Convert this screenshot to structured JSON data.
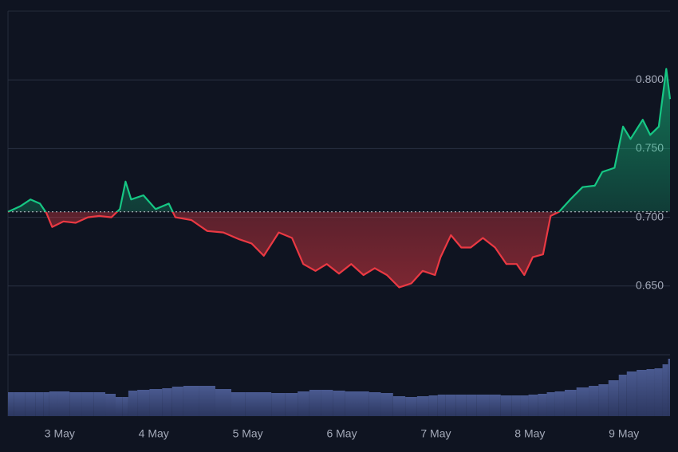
{
  "chart_data": {
    "type": "baseline",
    "x": [
      2.45,
      2.58,
      2.69,
      2.79,
      2.86,
      2.92,
      3.04,
      3.17,
      3.3,
      3.42,
      3.55,
      3.64,
      3.7,
      3.76,
      3.89,
      4.02,
      4.16,
      4.23,
      4.4,
      4.57,
      4.74,
      4.91,
      5.04,
      5.17,
      5.33,
      5.47,
      5.59,
      5.72,
      5.84,
      5.97,
      6.1,
      6.23,
      6.35,
      6.48,
      6.61,
      6.74,
      6.86,
      6.99,
      7.05,
      7.16,
      7.27,
      7.37,
      7.5,
      7.63,
      7.75,
      7.86,
      7.94,
      8.03,
      8.14,
      8.22,
      8.31,
      8.43,
      8.56,
      8.69,
      8.77,
      8.9,
      8.99,
      9.07,
      9.2,
      9.28,
      9.37,
      9.45,
      9.49
    ],
    "values": [
      0.704,
      0.708,
      0.713,
      0.71,
      0.703,
      0.693,
      0.697,
      0.696,
      0.7,
      0.701,
      0.7,
      0.706,
      0.726,
      0.713,
      0.716,
      0.706,
      0.71,
      0.7,
      0.698,
      0.69,
      0.689,
      0.684,
      0.681,
      0.672,
      0.689,
      0.685,
      0.666,
      0.661,
      0.666,
      0.659,
      0.666,
      0.658,
      0.663,
      0.658,
      0.649,
      0.652,
      0.661,
      0.658,
      0.671,
      0.687,
      0.678,
      0.678,
      0.685,
      0.678,
      0.666,
      0.666,
      0.658,
      0.671,
      0.673,
      0.701,
      0.704,
      0.713,
      0.722,
      0.723,
      0.733,
      0.736,
      0.766,
      0.757,
      0.771,
      0.76,
      0.766,
      0.808,
      0.786
    ],
    "volume": [
      30,
      30,
      30,
      30,
      30,
      31,
      31,
      30,
      30,
      30,
      28,
      24,
      24,
      32,
      33,
      34,
      35,
      37,
      38,
      38,
      34,
      30,
      30,
      30,
      29,
      29,
      31,
      33,
      33,
      32,
      31,
      31,
      30,
      29,
      25,
      24,
      25,
      26,
      27,
      27,
      27,
      27,
      27,
      27,
      26,
      26,
      26,
      27,
      28,
      30,
      31,
      33,
      36,
      38,
      40,
      45,
      52,
      56,
      58,
      59,
      60,
      65,
      72
    ],
    "baseline": 0.704,
    "up_color": "#16c784",
    "down_color": "#ea3943",
    "volume_color": "#3a4a7a",
    "xlim": [
      2.45,
      9.49
    ],
    "xticks": [
      {
        "value": 3,
        "label": "3 May"
      },
      {
        "value": 4,
        "label": "4 May"
      },
      {
        "value": 5,
        "label": "5 May"
      },
      {
        "value": 6,
        "label": "6 May"
      },
      {
        "value": 7,
        "label": "7 May"
      },
      {
        "value": 8,
        "label": "8 May"
      },
      {
        "value": 9,
        "label": "9 May"
      }
    ],
    "ylim": [
      0.6,
      0.85
    ],
    "yticks": [
      {
        "value": 0.65,
        "label": "0.650"
      },
      {
        "value": 0.7,
        "label": "0.700"
      },
      {
        "value": 0.75,
        "label": "0.750"
      },
      {
        "value": 0.8,
        "label": "0.800"
      }
    ],
    "grid": true
  }
}
